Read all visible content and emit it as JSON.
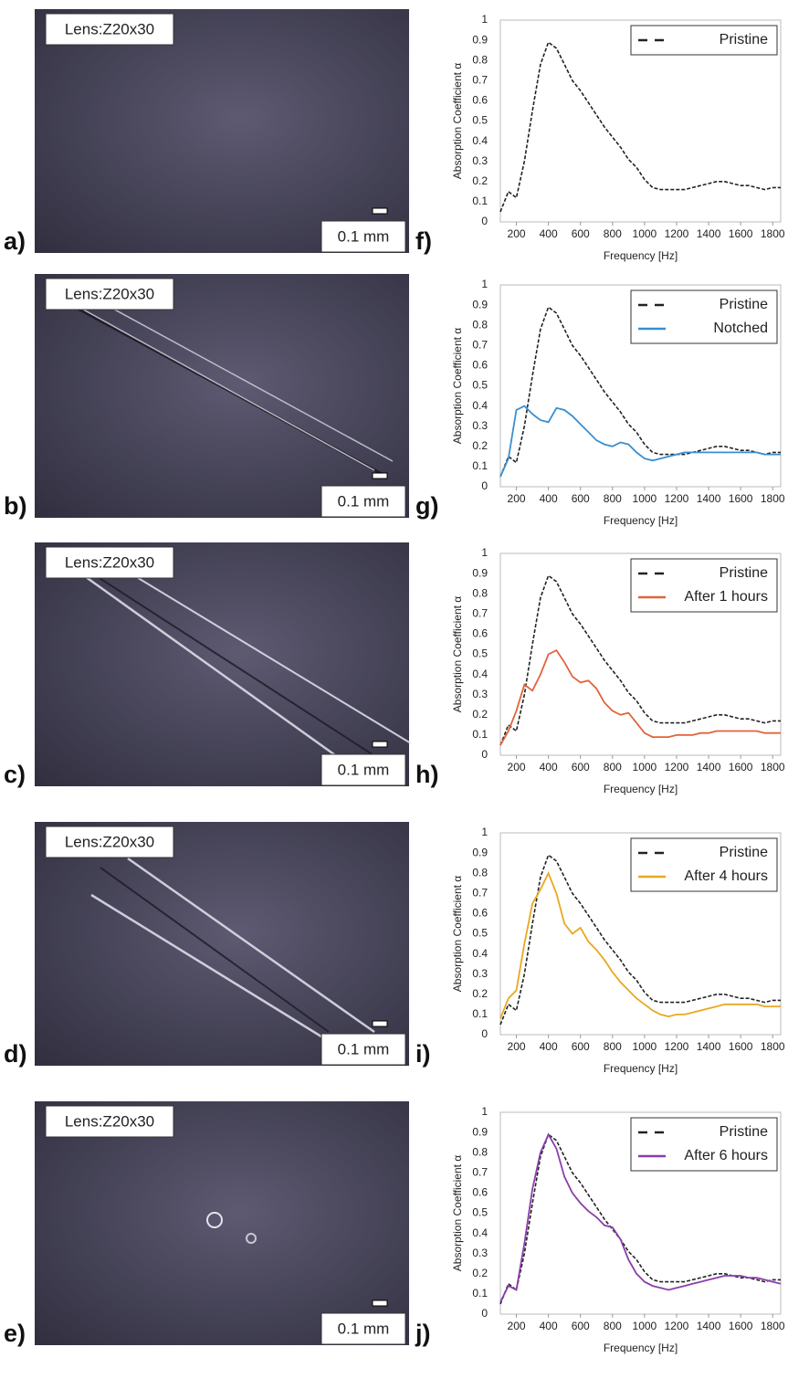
{
  "images": [
    {
      "panel": "a)",
      "lens": "Lens:Z20x30",
      "scale": "0.1 mm"
    },
    {
      "panel": "b)",
      "lens": "Lens:Z20x30",
      "scale": "0.1 mm"
    },
    {
      "panel": "c)",
      "lens": "Lens:Z20x30",
      "scale": "0.1 mm"
    },
    {
      "panel": "d)",
      "lens": "Lens:Z20x30",
      "scale": "0.1 mm"
    },
    {
      "panel": "e)",
      "lens": "Lens:Z20x30",
      "scale": "0.1 mm"
    }
  ],
  "chart_data": [
    {
      "type": "line",
      "panel": "f)",
      "xlabel": "Frequency [Hz]",
      "ylabel": "Absorption Coefficient α",
      "x": [
        100,
        150,
        200,
        250,
        300,
        350,
        400,
        450,
        500,
        550,
        600,
        650,
        700,
        750,
        800,
        850,
        900,
        950,
        1000,
        1050,
        1100,
        1150,
        1200,
        1250,
        1300,
        1350,
        1400,
        1450,
        1500,
        1550,
        1600,
        1650,
        1700,
        1750,
        1800,
        1850
      ],
      "xlim": [
        100,
        1850
      ],
      "xticks": [
        200,
        400,
        600,
        800,
        1000,
        1200,
        1400,
        1600,
        1800
      ],
      "ylim": [
        0,
        1
      ],
      "yticks": [
        0,
        0.1,
        0.2,
        0.3,
        0.4,
        0.5,
        0.6,
        0.7,
        0.8,
        0.9,
        1
      ],
      "legend": "upper right",
      "series": [
        {
          "name": "Pristine",
          "color": "#222222",
          "line_style": "dashed",
          "values": [
            0.05,
            0.15,
            0.12,
            0.3,
            0.55,
            0.78,
            0.89,
            0.86,
            0.78,
            0.7,
            0.65,
            0.59,
            0.53,
            0.47,
            0.42,
            0.37,
            0.31,
            0.27,
            0.21,
            0.17,
            0.16,
            0.16,
            0.16,
            0.16,
            0.17,
            0.18,
            0.19,
            0.2,
            0.2,
            0.19,
            0.18,
            0.18,
            0.17,
            0.16,
            0.17,
            0.17
          ]
        }
      ]
    },
    {
      "type": "line",
      "panel": "g)",
      "xlabel": "Frequency [Hz]",
      "ylabel": "Absorption Coefficient α",
      "x": [
        100,
        150,
        200,
        250,
        300,
        350,
        400,
        450,
        500,
        550,
        600,
        650,
        700,
        750,
        800,
        850,
        900,
        950,
        1000,
        1050,
        1100,
        1150,
        1200,
        1250,
        1300,
        1350,
        1400,
        1450,
        1500,
        1550,
        1600,
        1650,
        1700,
        1750,
        1800,
        1850
      ],
      "xlim": [
        100,
        1850
      ],
      "xticks": [
        200,
        400,
        600,
        800,
        1000,
        1200,
        1400,
        1600,
        1800
      ],
      "ylim": [
        0,
        1
      ],
      "yticks": [
        0,
        0.1,
        0.2,
        0.3,
        0.4,
        0.5,
        0.6,
        0.7,
        0.8,
        0.9,
        1
      ],
      "legend": "upper right",
      "series": [
        {
          "name": "Pristine",
          "color": "#222222",
          "line_style": "dashed",
          "values": [
            0.05,
            0.15,
            0.12,
            0.3,
            0.55,
            0.78,
            0.89,
            0.86,
            0.78,
            0.7,
            0.65,
            0.59,
            0.53,
            0.47,
            0.42,
            0.37,
            0.31,
            0.27,
            0.21,
            0.17,
            0.16,
            0.16,
            0.16,
            0.16,
            0.17,
            0.18,
            0.19,
            0.2,
            0.2,
            0.19,
            0.18,
            0.18,
            0.17,
            0.16,
            0.17,
            0.17
          ]
        },
        {
          "name": "Notched",
          "color": "#3a8fd0",
          "line_style": "solid",
          "values": [
            0.05,
            0.14,
            0.38,
            0.4,
            0.36,
            0.33,
            0.32,
            0.39,
            0.38,
            0.35,
            0.31,
            0.27,
            0.23,
            0.21,
            0.2,
            0.22,
            0.21,
            0.17,
            0.14,
            0.13,
            0.14,
            0.15,
            0.16,
            0.17,
            0.17,
            0.17,
            0.17,
            0.17,
            0.17,
            0.17,
            0.17,
            0.17,
            0.17,
            0.16,
            0.16,
            0.16
          ]
        }
      ]
    },
    {
      "type": "line",
      "panel": "h)",
      "xlabel": "Frequency [Hz]",
      "ylabel": "Absorption Coefficient α",
      "x": [
        100,
        150,
        200,
        250,
        300,
        350,
        400,
        450,
        500,
        550,
        600,
        650,
        700,
        750,
        800,
        850,
        900,
        950,
        1000,
        1050,
        1100,
        1150,
        1200,
        1250,
        1300,
        1350,
        1400,
        1450,
        1500,
        1550,
        1600,
        1650,
        1700,
        1750,
        1800,
        1850
      ],
      "xlim": [
        100,
        1850
      ],
      "xticks": [
        200,
        400,
        600,
        800,
        1000,
        1200,
        1400,
        1600,
        1800
      ],
      "ylim": [
        0,
        1
      ],
      "yticks": [
        0,
        0.1,
        0.2,
        0.3,
        0.4,
        0.5,
        0.6,
        0.7,
        0.8,
        0.9,
        1
      ],
      "legend": "upper right",
      "series": [
        {
          "name": "Pristine",
          "color": "#222222",
          "line_style": "dashed",
          "values": [
            0.05,
            0.15,
            0.12,
            0.3,
            0.55,
            0.78,
            0.89,
            0.86,
            0.78,
            0.7,
            0.65,
            0.59,
            0.53,
            0.47,
            0.42,
            0.37,
            0.31,
            0.27,
            0.21,
            0.17,
            0.16,
            0.16,
            0.16,
            0.16,
            0.17,
            0.18,
            0.19,
            0.2,
            0.2,
            0.19,
            0.18,
            0.18,
            0.17,
            0.16,
            0.17,
            0.17
          ]
        },
        {
          "name": "After 1 hours",
          "color": "#e0643a",
          "line_style": "solid",
          "values": [
            0.05,
            0.12,
            0.22,
            0.35,
            0.32,
            0.4,
            0.5,
            0.52,
            0.46,
            0.39,
            0.36,
            0.37,
            0.33,
            0.26,
            0.22,
            0.2,
            0.21,
            0.16,
            0.11,
            0.09,
            0.09,
            0.09,
            0.1,
            0.1,
            0.1,
            0.11,
            0.11,
            0.12,
            0.12,
            0.12,
            0.12,
            0.12,
            0.12,
            0.11,
            0.11,
            0.11
          ]
        }
      ]
    },
    {
      "type": "line",
      "panel": "i)",
      "xlabel": "Frequency [Hz]",
      "ylabel": "Absorption Coefficient α",
      "x": [
        100,
        150,
        200,
        250,
        300,
        350,
        400,
        450,
        500,
        550,
        600,
        650,
        700,
        750,
        800,
        850,
        900,
        950,
        1000,
        1050,
        1100,
        1150,
        1200,
        1250,
        1300,
        1350,
        1400,
        1450,
        1500,
        1550,
        1600,
        1650,
        1700,
        1750,
        1800,
        1850
      ],
      "xlim": [
        100,
        1850
      ],
      "xticks": [
        200,
        400,
        600,
        800,
        1000,
        1200,
        1400,
        1600,
        1800
      ],
      "ylim": [
        0,
        1
      ],
      "yticks": [
        0,
        0.1,
        0.2,
        0.3,
        0.4,
        0.5,
        0.6,
        0.7,
        0.8,
        0.9,
        1
      ],
      "legend": "upper right",
      "series": [
        {
          "name": "Pristine",
          "color": "#222222",
          "line_style": "dashed",
          "values": [
            0.05,
            0.15,
            0.12,
            0.3,
            0.55,
            0.78,
            0.89,
            0.86,
            0.78,
            0.7,
            0.65,
            0.59,
            0.53,
            0.47,
            0.42,
            0.37,
            0.31,
            0.27,
            0.21,
            0.17,
            0.16,
            0.16,
            0.16,
            0.16,
            0.17,
            0.18,
            0.19,
            0.2,
            0.2,
            0.19,
            0.18,
            0.18,
            0.17,
            0.16,
            0.17,
            0.17
          ]
        },
        {
          "name": "After 4 hours",
          "color": "#e8a820",
          "line_style": "solid",
          "values": [
            0.08,
            0.18,
            0.22,
            0.45,
            0.65,
            0.72,
            0.8,
            0.7,
            0.55,
            0.5,
            0.53,
            0.46,
            0.42,
            0.37,
            0.31,
            0.26,
            0.22,
            0.18,
            0.15,
            0.12,
            0.1,
            0.09,
            0.1,
            0.1,
            0.11,
            0.12,
            0.13,
            0.14,
            0.15,
            0.15,
            0.15,
            0.15,
            0.15,
            0.14,
            0.14,
            0.14
          ]
        }
      ]
    },
    {
      "type": "line",
      "panel": "j)",
      "xlabel": "Frequency [Hz]",
      "ylabel": "Absorption Coefficient α",
      "x": [
        100,
        150,
        200,
        250,
        300,
        350,
        400,
        450,
        500,
        550,
        600,
        650,
        700,
        750,
        800,
        850,
        900,
        950,
        1000,
        1050,
        1100,
        1150,
        1200,
        1250,
        1300,
        1350,
        1400,
        1450,
        1500,
        1550,
        1600,
        1650,
        1700,
        1750,
        1800,
        1850
      ],
      "xlim": [
        100,
        1850
      ],
      "xticks": [
        200,
        400,
        600,
        800,
        1000,
        1200,
        1400,
        1600,
        1800
      ],
      "ylim": [
        0,
        1
      ],
      "yticks": [
        0,
        0.1,
        0.2,
        0.3,
        0.4,
        0.5,
        0.6,
        0.7,
        0.8,
        0.9,
        1
      ],
      "legend": "upper right",
      "series": [
        {
          "name": "Pristine",
          "color": "#222222",
          "line_style": "dashed",
          "values": [
            0.05,
            0.15,
            0.12,
            0.3,
            0.55,
            0.78,
            0.89,
            0.86,
            0.78,
            0.7,
            0.65,
            0.59,
            0.53,
            0.47,
            0.42,
            0.37,
            0.31,
            0.27,
            0.21,
            0.17,
            0.16,
            0.16,
            0.16,
            0.16,
            0.17,
            0.18,
            0.19,
            0.2,
            0.2,
            0.19,
            0.18,
            0.18,
            0.17,
            0.16,
            0.17,
            0.17
          ]
        },
        {
          "name": "After 6 hours",
          "color": "#8a3fa8",
          "line_style": "solid",
          "values": [
            0.06,
            0.14,
            0.12,
            0.35,
            0.62,
            0.8,
            0.89,
            0.82,
            0.68,
            0.6,
            0.55,
            0.51,
            0.48,
            0.44,
            0.43,
            0.37,
            0.27,
            0.2,
            0.16,
            0.14,
            0.13,
            0.12,
            0.13,
            0.14,
            0.15,
            0.16,
            0.17,
            0.18,
            0.19,
            0.19,
            0.19,
            0.18,
            0.18,
            0.17,
            0.16,
            0.15
          ]
        }
      ]
    }
  ]
}
